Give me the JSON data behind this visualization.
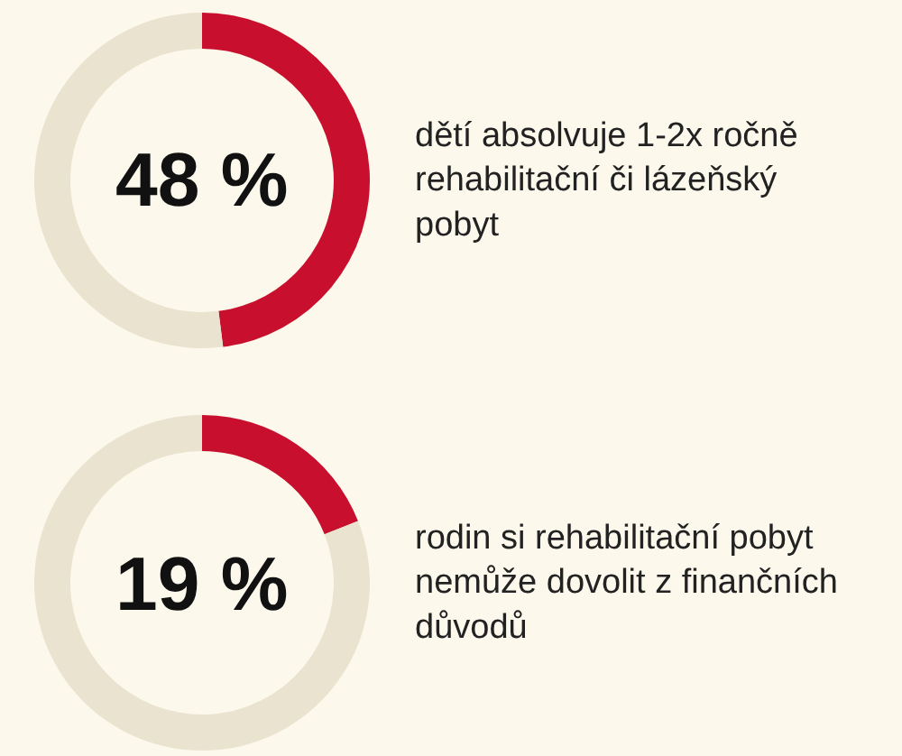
{
  "chart_data": [
    {
      "type": "donut",
      "categories": [
        null,
        null
      ],
      "values": [
        48,
        52
      ],
      "colors": [
        "#c8102e",
        "#e9e3cf"
      ],
      "title": "48 %",
      "annotations": [
        "dětí absolvuje 1-2x ročně\nrehabilitační či lázeňský\npobyt"
      ]
    },
    {
      "type": "donut",
      "categories": [
        null,
        null
      ],
      "values": [
        19,
        81
      ],
      "colors": [
        "#c8102e",
        "#e9e3cf"
      ],
      "title": "19 %",
      "annotations": [
        "rodin si rehabilitační pobyt\nnemůže dovolit z finančních\ndůvodů"
      ]
    }
  ]
}
